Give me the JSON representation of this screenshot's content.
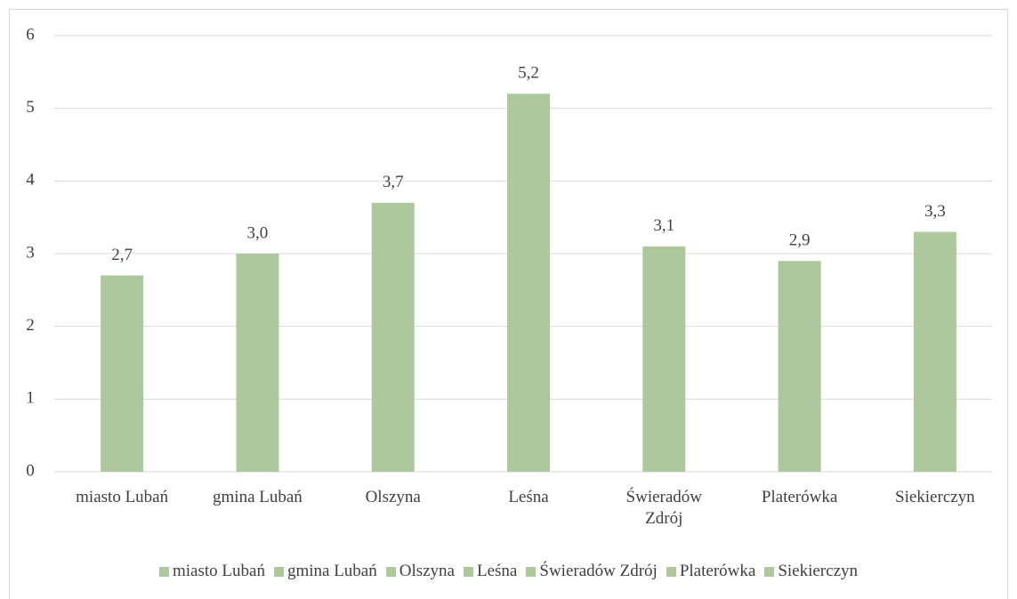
{
  "chart_data": {
    "type": "bar",
    "categories": [
      "miasto Lubań",
      "gmina Lubań",
      "Olszyna",
      "Leśna",
      "Świeradów Zdrój",
      "Platerówka",
      "Siekierczyn"
    ],
    "values": [
      2.7,
      3.0,
      3.7,
      5.2,
      3.1,
      2.9,
      3.3
    ],
    "value_labels": [
      "2,7",
      "3,0",
      "3,7",
      "5,2",
      "3,1",
      "2,9",
      "3,3"
    ],
    "color": "#adc89c",
    "ylim": [
      0,
      6
    ],
    "yticks": [
      0,
      1,
      2,
      3,
      4,
      5,
      6
    ],
    "grid": true,
    "legend": "bottom"
  }
}
